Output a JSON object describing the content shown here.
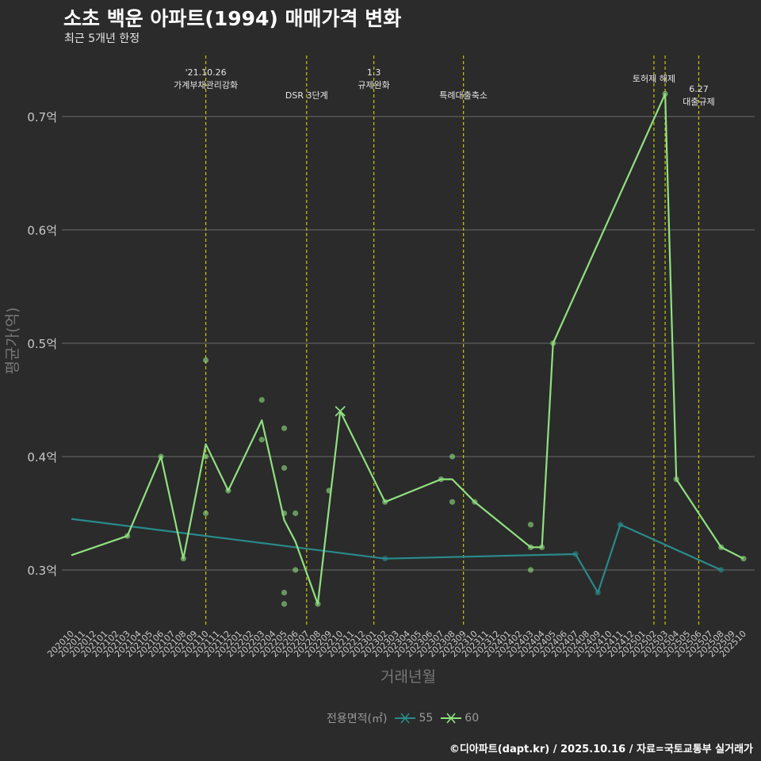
{
  "title": "소초 백운 아파트(1994) 매매가격 변화",
  "subtitle": "최근 5개년 한정",
  "caption": "©디아파트(dapt.kr) / 2025.10.16 / 자료=국토교통부 실거래가",
  "legend": {
    "title": "전용면적(㎡)",
    "items": [
      {
        "label": "55",
        "color": "#2a8a8a"
      },
      {
        "label": "60",
        "color": "#90e080"
      }
    ]
  },
  "colors": {
    "background": "#2b2b2b",
    "grid": "#6b6b6b",
    "event_line": "#c8c800",
    "axis_text": "#c8c8c8"
  },
  "chart_data": {
    "type": "line",
    "xlabel": "거래년월",
    "ylabel": "평균가(억)",
    "ylim": [
      0.25,
      0.75
    ],
    "yticks": [
      0.3,
      0.4,
      0.5,
      0.6,
      0.7
    ],
    "ytick_labels": [
      "0.3억",
      "0.4억",
      "0.5억",
      "0.6억",
      "0.7억"
    ],
    "x_categories": [
      "202010",
      "202011",
      "202012",
      "202101",
      "202102",
      "202103",
      "202104",
      "202105",
      "202106",
      "202107",
      "202108",
      "202109",
      "202110",
      "202111",
      "202112",
      "202201",
      "202202",
      "202203",
      "202204",
      "202205",
      "202206",
      "202207",
      "202208",
      "202209",
      "202210",
      "202211",
      "202212",
      "202301",
      "202302",
      "202303",
      "202304",
      "202305",
      "202306",
      "202307",
      "202308",
      "202309",
      "202310",
      "202311",
      "202312",
      "202401",
      "202402",
      "202403",
      "202404",
      "202405",
      "202406",
      "202407",
      "202408",
      "202409",
      "202410",
      "202411",
      "202412",
      "202501",
      "202502",
      "202503",
      "202504",
      "202505",
      "202506",
      "202507",
      "202508",
      "202509",
      "202510"
    ],
    "series": [
      {
        "name": "55",
        "color": "#2a8a8a",
        "line": [
          {
            "x": "202010",
            "y": 0.345
          },
          {
            "x": "202302",
            "y": 0.31
          },
          {
            "x": "202407",
            "y": 0.314
          },
          {
            "x": "202409",
            "y": 0.28
          },
          {
            "x": "202411",
            "y": 0.34
          },
          {
            "x": "202508",
            "y": 0.3
          }
        ],
        "points": [
          {
            "x": "202302",
            "y": 0.31
          },
          {
            "x": "202407",
            "y": 0.314
          },
          {
            "x": "202409",
            "y": 0.28
          },
          {
            "x": "202411",
            "y": 0.34
          },
          {
            "x": "202508",
            "y": 0.3
          }
        ]
      },
      {
        "name": "60",
        "color": "#90e080",
        "line": [
          {
            "x": "202010",
            "y": 0.313
          },
          {
            "x": "202103",
            "y": 0.33
          },
          {
            "x": "202106",
            "y": 0.4
          },
          {
            "x": "202108",
            "y": 0.31
          },
          {
            "x": "202110",
            "y": 0.411
          },
          {
            "x": "202112",
            "y": 0.37
          },
          {
            "x": "202203",
            "y": 0.432
          },
          {
            "x": "202205",
            "y": 0.344
          },
          {
            "x": "202206",
            "y": 0.325
          },
          {
            "x": "202208",
            "y": 0.27
          },
          {
            "x": "202210",
            "y": 0.44
          },
          {
            "x": "202302",
            "y": 0.36
          },
          {
            "x": "202307",
            "y": 0.38
          },
          {
            "x": "202308",
            "y": 0.38
          },
          {
            "x": "202310",
            "y": 0.36
          },
          {
            "x": "202403",
            "y": 0.32
          },
          {
            "x": "202404",
            "y": 0.32
          },
          {
            "x": "202405",
            "y": 0.5
          },
          {
            "x": "202503",
            "y": 0.72
          },
          {
            "x": "202504",
            "y": 0.38
          },
          {
            "x": "202508",
            "y": 0.32
          },
          {
            "x": "202510",
            "y": 0.31
          }
        ],
        "points": [
          {
            "x": "202103",
            "y": 0.33
          },
          {
            "x": "202106",
            "y": 0.4
          },
          {
            "x": "202108",
            "y": 0.31
          },
          {
            "x": "202110",
            "y": 0.485
          },
          {
            "x": "202110",
            "y": 0.4
          },
          {
            "x": "202110",
            "y": 0.35
          },
          {
            "x": "202112",
            "y": 0.37
          },
          {
            "x": "202203",
            "y": 0.45
          },
          {
            "x": "202203",
            "y": 0.415
          },
          {
            "x": "202205",
            "y": 0.425
          },
          {
            "x": "202205",
            "y": 0.39
          },
          {
            "x": "202205",
            "y": 0.35
          },
          {
            "x": "202205",
            "y": 0.28
          },
          {
            "x": "202205",
            "y": 0.27
          },
          {
            "x": "202206",
            "y": 0.35
          },
          {
            "x": "202206",
            "y": 0.3
          },
          {
            "x": "202208",
            "y": 0.27
          },
          {
            "x": "202209",
            "y": 0.37
          },
          {
            "x": "202302",
            "y": 0.36
          },
          {
            "x": "202307",
            "y": 0.38
          },
          {
            "x": "202308",
            "y": 0.4
          },
          {
            "x": "202308",
            "y": 0.36
          },
          {
            "x": "202310",
            "y": 0.36
          },
          {
            "x": "202403",
            "y": 0.34
          },
          {
            "x": "202403",
            "y": 0.32
          },
          {
            "x": "202403",
            "y": 0.3
          },
          {
            "x": "202404",
            "y": 0.32
          },
          {
            "x": "202405",
            "y": 0.5
          },
          {
            "x": "202503",
            "y": 0.72
          },
          {
            "x": "202504",
            "y": 0.38
          },
          {
            "x": "202508",
            "y": 0.32
          },
          {
            "x": "202510",
            "y": 0.31
          }
        ],
        "cross_markers": [
          {
            "x": "202210",
            "y": 0.44
          }
        ]
      }
    ],
    "annotations": [
      {
        "x": "202110",
        "lines": [
          "'21.10.26",
          "가계부채관리강화"
        ],
        "level": "high"
      },
      {
        "x": "202207",
        "lines": [
          "DSR 3단계"
        ],
        "level": "low"
      },
      {
        "x": "202301",
        "lines": [
          "1.3",
          "규제완화"
        ],
        "level": "high"
      },
      {
        "x": "202309",
        "lines": [
          "특례대출축소"
        ],
        "level": "low"
      },
      {
        "x": "202502",
        "lines": [
          "토허제 해제"
        ],
        "level": "mid"
      },
      {
        "x": "202503",
        "lines": [],
        "level": "none"
      },
      {
        "x": "202506",
        "lines": [
          "6.27",
          "대출규제"
        ],
        "level": "lowmid"
      }
    ]
  }
}
